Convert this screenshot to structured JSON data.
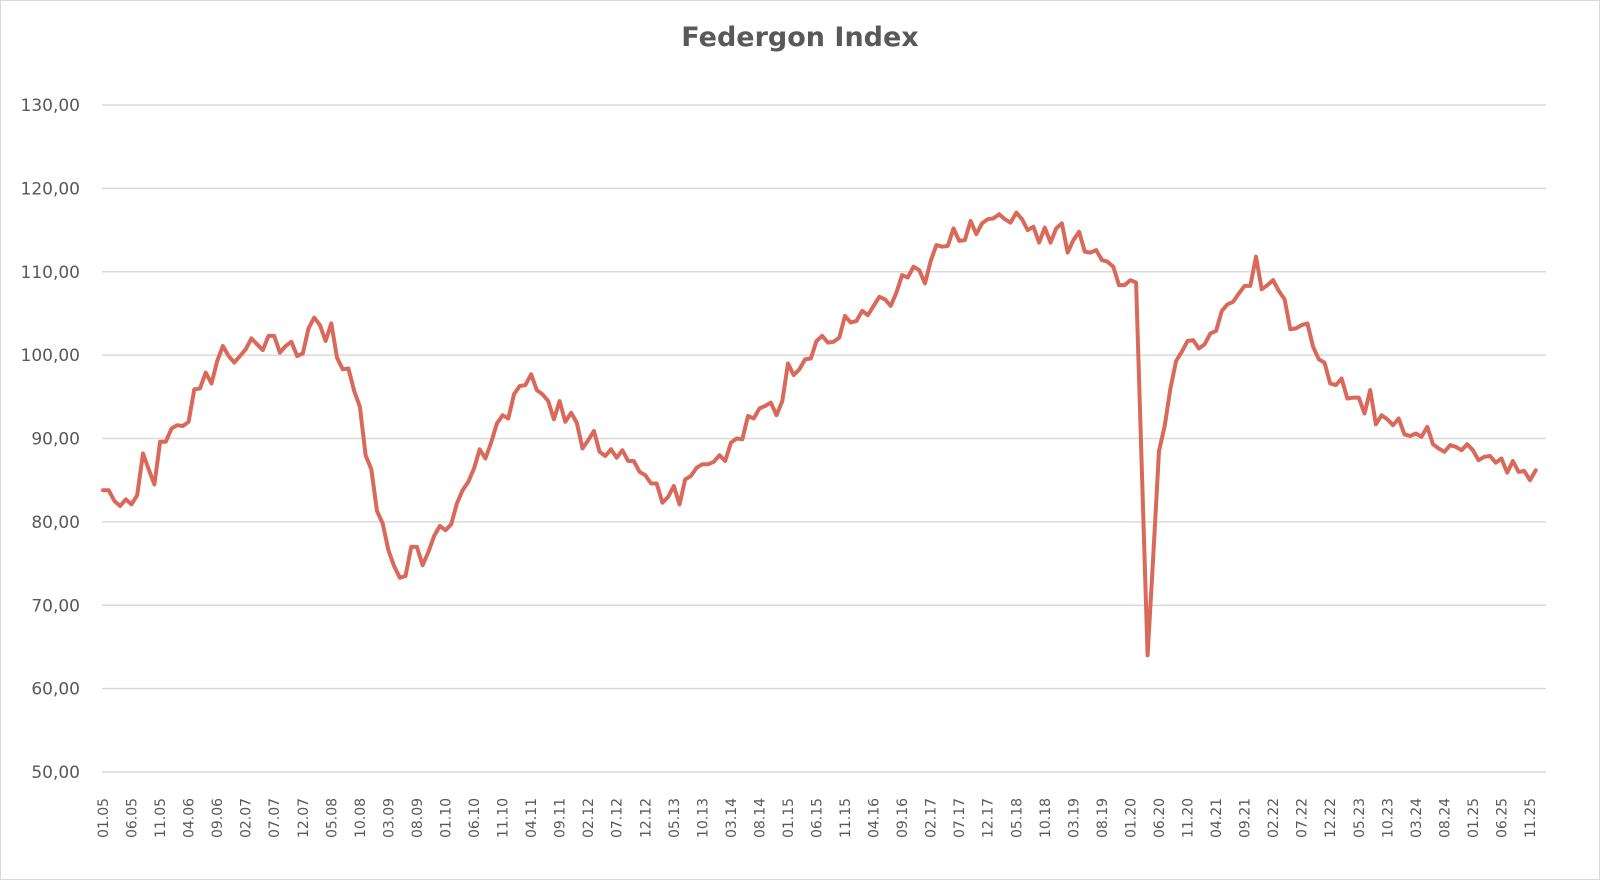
{
  "chart_data": {
    "type": "line",
    "title": "Federgon Index",
    "xlabel": "",
    "ylabel": "",
    "ylim": [
      50,
      130
    ],
    "yticks": [
      "50,00",
      "60,00",
      "70,00",
      "80,00",
      "90,00",
      "100,00",
      "110,00",
      "120,00",
      "130,00"
    ],
    "ytick_values": [
      50,
      60,
      70,
      80,
      90,
      100,
      110,
      120,
      130
    ],
    "grid": true,
    "legend": "none",
    "x_tick_labels": [
      "01.05",
      "06.05",
      "11.05",
      "04.06",
      "09.06",
      "02.07",
      "07.07",
      "12.07",
      "05.08",
      "10.08",
      "03.09",
      "08.09",
      "01.10",
      "06.10",
      "11.10",
      "04.11",
      "09.11",
      "02.12",
      "07.12",
      "12.12",
      "05.13",
      "10.13",
      "03.14",
      "08.14",
      "01.15",
      "06.15",
      "11.15",
      "04.16",
      "09.16",
      "02.17",
      "07.17",
      "12.17",
      "05.18",
      "10.18",
      "03.19",
      "08.19",
      "01.20",
      "06.20",
      "11.20",
      "04.21",
      "09.21",
      "02.22",
      "07.22",
      "12.22",
      "05.23",
      "10.23",
      "03.24",
      "08.24",
      "01.25",
      "06.25",
      "11.25"
    ],
    "x_tick_every_months": 5,
    "x_start": "01.05",
    "series": [
      {
        "name": "Federgon Index",
        "color": "#d9695a",
        "values": [
          83.8,
          83.8,
          82.5,
          81.9,
          82.7,
          82.1,
          83.2,
          88.2,
          86.3,
          84.5,
          89.6,
          89.6,
          91.2,
          91.6,
          91.5,
          92.0,
          95.9,
          96.0,
          97.9,
          96.6,
          99.3,
          101.1,
          99.9,
          99.1,
          99.9,
          100.7,
          102.0,
          101.3,
          100.6,
          102.3,
          102.3,
          100.3,
          101.1,
          101.6,
          99.9,
          100.2,
          103.2,
          104.5,
          103.6,
          101.7,
          103.8,
          99.7,
          98.3,
          98.4,
          95.7,
          93.8,
          88.0,
          86.3,
          81.3,
          79.8,
          76.6,
          74.7,
          73.3,
          73.5,
          77.0,
          77.0,
          74.8,
          76.4,
          78.3,
          79.5,
          79.0,
          79.7,
          82.2,
          83.8,
          84.8,
          86.4,
          88.7,
          87.6,
          89.5,
          91.8,
          92.8,
          92.4,
          95.3,
          96.3,
          96.4,
          97.7,
          95.8,
          95.3,
          94.5,
          92.3,
          94.5,
          92.0,
          93.1,
          91.9,
          88.8,
          89.8,
          90.9,
          88.4,
          87.9,
          88.7,
          87.7,
          88.6,
          87.3,
          87.3,
          86.0,
          85.6,
          84.6,
          84.6,
          82.3,
          83.0,
          84.3,
          82.1,
          85.1,
          85.5,
          86.5,
          86.9,
          86.9,
          87.2,
          88.0,
          87.3,
          89.5,
          90.0,
          89.9,
          92.7,
          92.4,
          93.6,
          93.9,
          94.3,
          92.8,
          94.5,
          99.0,
          97.6,
          98.3,
          99.5,
          99.6,
          101.7,
          102.3,
          101.5,
          101.6,
          102.1,
          104.7,
          103.9,
          104.1,
          105.3,
          104.8,
          105.9,
          107.0,
          106.7,
          105.9,
          107.5,
          109.6,
          109.3,
          110.6,
          110.2,
          108.6,
          111.3,
          113.2,
          113.0,
          113.1,
          115.2,
          113.7,
          113.8,
          116.1,
          114.5,
          115.8,
          116.3,
          116.4,
          116.9,
          116.3,
          115.9,
          117.1,
          116.3,
          115.0,
          115.4,
          113.5,
          115.3,
          113.5,
          115.2,
          115.8,
          112.3,
          113.8,
          114.8,
          112.4,
          112.3,
          112.6,
          111.4,
          111.2,
          110.6,
          108.4,
          108.4,
          109.0,
          108.7,
          86.0,
          64.0,
          76.0,
          88.5,
          91.5,
          96.0,
          99.3,
          100.4,
          101.7,
          101.8,
          100.8,
          101.3,
          102.6,
          102.9,
          105.3,
          106.1,
          106.4,
          107.4,
          108.3,
          108.3,
          111.8,
          107.9,
          108.4,
          109.0,
          107.7,
          106.7,
          103.1,
          103.2,
          103.6,
          103.8,
          101.0,
          99.5,
          99.1,
          96.6,
          96.4,
          97.2,
          94.8,
          94.9,
          94.9,
          93.0,
          95.8,
          91.7,
          92.8,
          92.3,
          91.6,
          92.4,
          90.5,
          90.3,
          90.6,
          90.2,
          91.4,
          89.3,
          88.8,
          88.4,
          89.2,
          89.0,
          88.6,
          89.3,
          88.6,
          87.4,
          87.8,
          87.9,
          87.1,
          87.6,
          85.9,
          87.3,
          86.0,
          86.1,
          85.0,
          86.2
        ]
      }
    ]
  }
}
